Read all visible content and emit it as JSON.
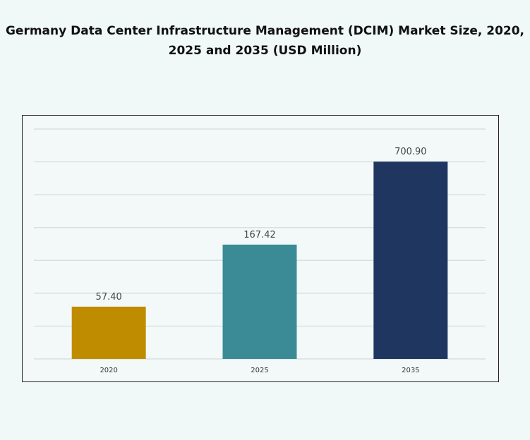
{
  "chart_data": {
    "type": "bar",
    "title_line1": "Germany Data Center Infrastructure  Management (DCIM) Market Size, 2020,",
    "title_line2": "2025 and 2035 (USD Million)",
    "categories": [
      "2020",
      "2025",
      "2035"
    ],
    "values": [
      57.4,
      167.42,
      700.9
    ],
    "value_labels": [
      "57.40",
      "167.42",
      "700.90"
    ],
    "colors": [
      "#bf8c00",
      "#3a8b95",
      "#1f3660"
    ],
    "yscale": "log",
    "ylim": [
      23.3,
      1230
    ],
    "grid": true,
    "legend": "none",
    "xlabel": "",
    "ylabel": ""
  }
}
